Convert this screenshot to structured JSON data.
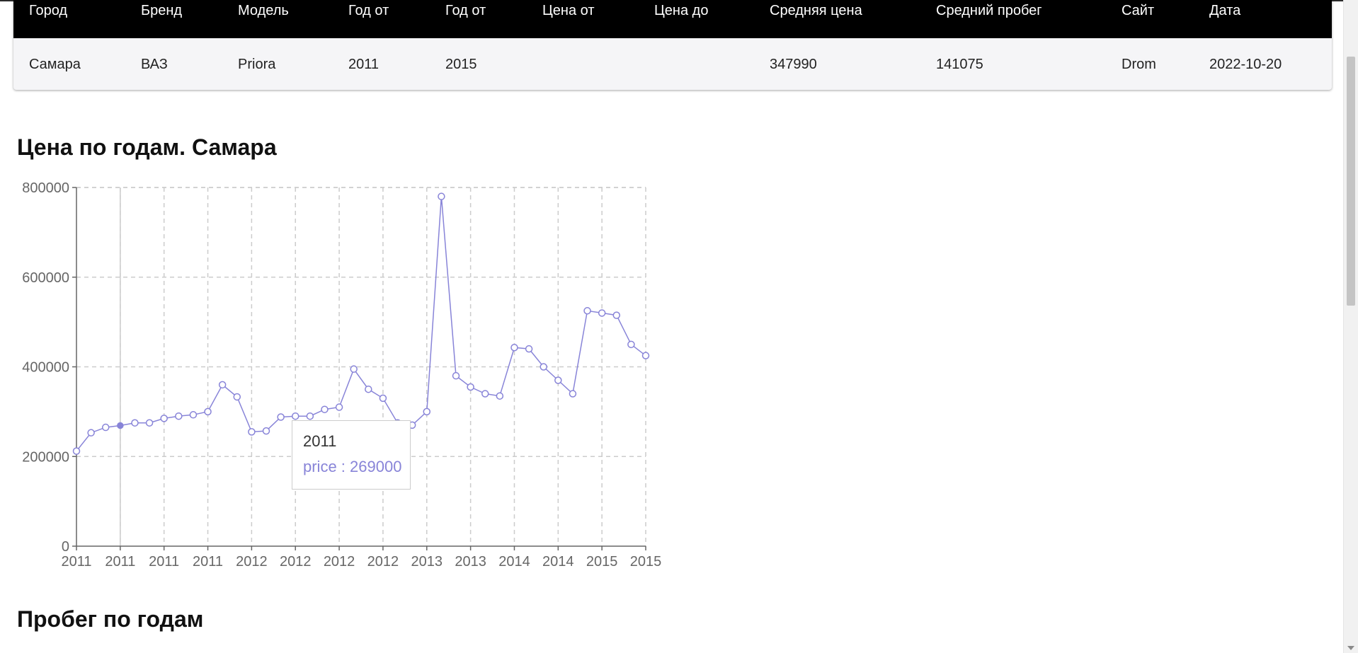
{
  "table": {
    "columns": [
      "Город",
      "Бренд",
      "Модель",
      "Год от",
      "Год от",
      "Цена от",
      "Цена до",
      "Средняя цена",
      "Средний пробег",
      "Сайт",
      "Дата"
    ],
    "row": [
      "Самара",
      "ВАЗ",
      "Priora",
      "2011",
      "2015",
      "",
      "",
      "347990",
      "141075",
      "Drom",
      "2022-10-20"
    ]
  },
  "sections": {
    "price_title": "Цена по годам. Самара",
    "mileage_title": "Пробег по годам"
  },
  "tooltip": {
    "label": "2011",
    "value": "price : 269000"
  },
  "colors": {
    "line": "#8884d8",
    "grid": "#cccccc",
    "header_bg": "#000000"
  },
  "chart_data": {
    "type": "line",
    "title": "",
    "xlabel": "",
    "ylabel": "",
    "ylim": [
      0,
      800000
    ],
    "yticks": [
      0,
      200000,
      400000,
      600000,
      800000
    ],
    "x": [
      "2011",
      "2011",
      "2011",
      "2011",
      "2011",
      "2011",
      "2011",
      "2011",
      "2011",
      "2011",
      "2011",
      "2011",
      "2011",
      "2012",
      "2012",
      "2012",
      "2012",
      "2012",
      "2012",
      "2012",
      "2012",
      "2012",
      "2012",
      "2012",
      "2013",
      "2013",
      "2013",
      "2013",
      "2013",
      "2013",
      "2014",
      "2014",
      "2014",
      "2014",
      "2014",
      "2015",
      "2015",
      "2015",
      "2015",
      "2015"
    ],
    "xtick_labels": [
      "2011",
      "2011",
      "2011",
      "2011",
      "2012",
      "2012",
      "2012",
      "2012",
      "2013",
      "2013",
      "2014",
      "2014",
      "2015",
      "2015"
    ],
    "series": [
      {
        "values": [
          212000,
          253000,
          265000,
          269000,
          275000,
          275000,
          285000,
          290000,
          293000,
          300000,
          360000,
          333000,
          255000,
          257000,
          288000,
          290000,
          290000,
          305000,
          310000,
          395000,
          350000,
          330000,
          275000,
          270000,
          300000,
          780000,
          380000,
          355000,
          340000,
          335000,
          443000,
          440000,
          400000,
          370000,
          340000,
          525000,
          520000,
          515000,
          450000,
          425000
        ]
      }
    ],
    "grid": true,
    "active_index": 3
  }
}
